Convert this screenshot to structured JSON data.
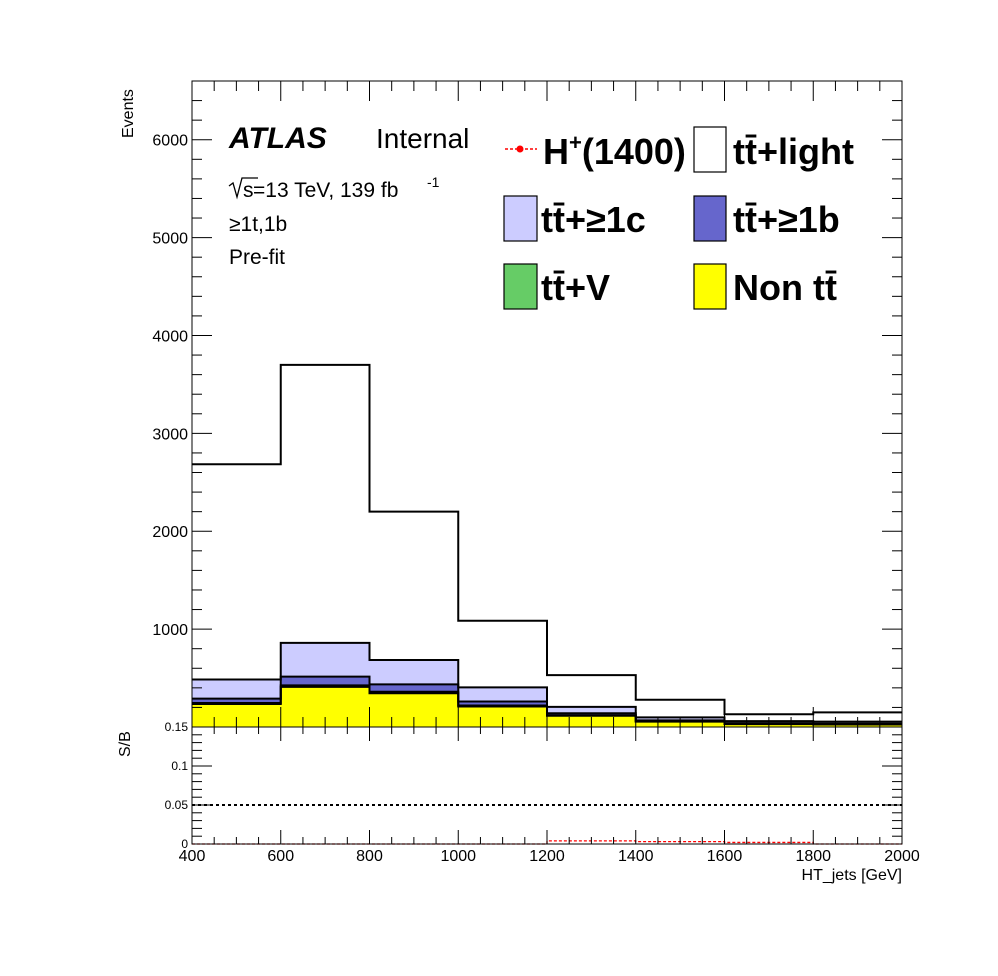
{
  "chart_data": [
    {
      "type": "bar",
      "subtype": "stacked-step-histogram",
      "bin_edges": [
        400,
        600,
        800,
        1000,
        1200,
        1400,
        1600,
        1800,
        2000
      ],
      "ylabel": "Events",
      "ylim": [
        0,
        6600
      ],
      "yticks": [
        1000,
        2000,
        3000,
        4000,
        5000,
        6000
      ],
      "ytick_labels": [
        "1000",
        "2000",
        "3000",
        "4000",
        "5000",
        "6000"
      ],
      "series": [
        {
          "name": "Non tt̄",
          "color": "#ffff00",
          "values": [
            235,
            410,
            345,
            210,
            115,
            55,
            30,
            25
          ]
        },
        {
          "name": "tt̄+V",
          "color": "#66cc66",
          "values": [
            10,
            15,
            15,
            10,
            5,
            3,
            2,
            2
          ]
        },
        {
          "name": "tt̄+≥1b",
          "color": "#6666cc",
          "values": [
            45,
            90,
            75,
            40,
            20,
            10,
            8,
            8
          ]
        },
        {
          "name": "tt̄+≥1c",
          "color": "#ccccff",
          "values": [
            195,
            345,
            250,
            145,
            65,
            30,
            20,
            20
          ]
        },
        {
          "name": "tt̄+light",
          "color": "#ffffff",
          "values": [
            2200,
            2840,
            1515,
            680,
            325,
            180,
            70,
            95
          ]
        }
      ],
      "signal": {
        "name": "H+(1400)",
        "color": "#ff0000",
        "values": [
          0,
          0,
          0,
          0,
          4,
          3,
          2,
          0
        ]
      },
      "legend_position": "top-right",
      "annotations": {
        "experiment": "ATLAS",
        "status": "Internal",
        "energy_prefix": "s",
        "energy_text": " =13 TeV, 139 fb",
        "energy_exp": "-1",
        "region": "≥1t,1b",
        "fit_state": "Pre-fit"
      },
      "legend": {
        "signal_main": "H",
        "signal_sup": "+",
        "signal_rest": "(1400)",
        "tt_light": "tt̄+light",
        "tt_1c": "tt̄+≥1c",
        "tt_1b": "tt̄+≥1b",
        "tt_v": "tt̄+V",
        "non_tt": "Non tt̄"
      }
    },
    {
      "type": "line",
      "ylabel": "S/B",
      "xlabel": "HT_jets [GeV]",
      "xlim": [
        400,
        2000
      ],
      "xticks": [
        400,
        600,
        800,
        1000,
        1200,
        1400,
        1600,
        1800,
        2000
      ],
      "xtick_labels": [
        "400",
        "600",
        "800",
        "1000",
        "1200",
        "1400",
        "1600",
        "1800",
        "2000"
      ],
      "ylim": [
        0,
        0.15
      ],
      "yticks": [
        0,
        0.05,
        0.1,
        0.15
      ],
      "ytick_labels": [
        "0",
        "0.05",
        "0.1",
        "0.15"
      ],
      "reference_line": 0.05,
      "sb_values": [
        0,
        0,
        0,
        0,
        0.004,
        0.003,
        0.002,
        0
      ]
    }
  ]
}
